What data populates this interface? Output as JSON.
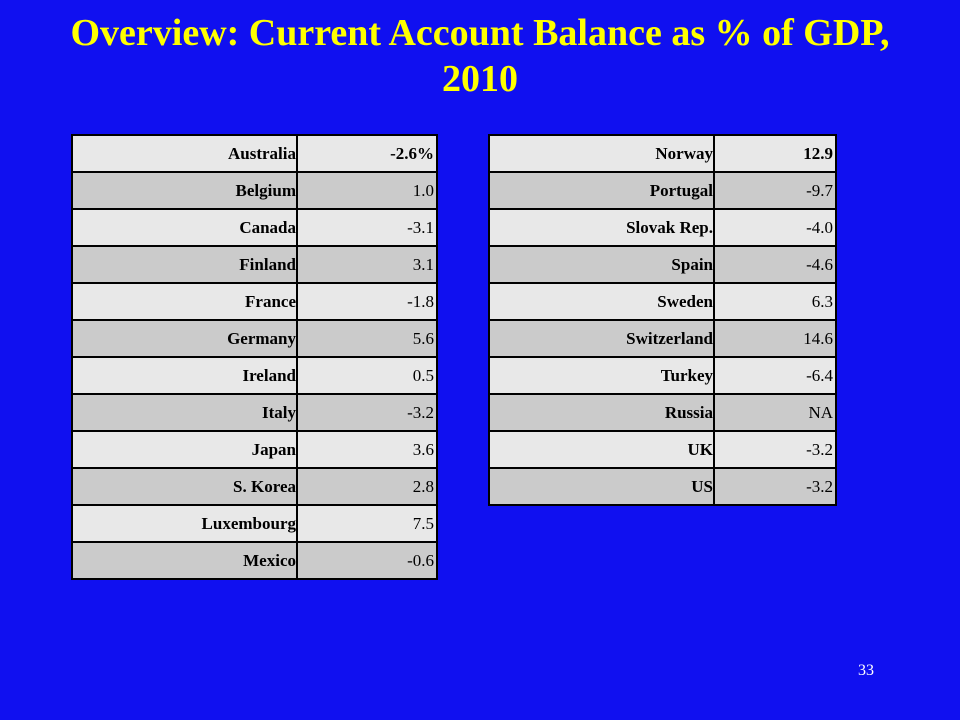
{
  "title": "Overview: Current Account Balance as % of GDP, 2010",
  "table_left": {
    "rows": [
      {
        "country": "Australia",
        "value": "-2.6%"
      },
      {
        "country": "Belgium",
        "value": "1.0"
      },
      {
        "country": "Canada",
        "value": "-3.1"
      },
      {
        "country": "Finland",
        "value": "3.1"
      },
      {
        "country": "France",
        "value": "-1.8"
      },
      {
        "country": "Germany",
        "value": "5.6"
      },
      {
        "country": "Ireland",
        "value": "0.5"
      },
      {
        "country": "Italy",
        "value": "-3.2"
      },
      {
        "country": "Japan",
        "value": "3.6"
      },
      {
        "country": "S. Korea",
        "value": "2.8"
      },
      {
        "country": "Luxembourg",
        "value": "7.5"
      },
      {
        "country": "Mexico",
        "value": "-0.6"
      }
    ]
  },
  "table_right": {
    "rows": [
      {
        "country": "Norway",
        "value": "12.9"
      },
      {
        "country": "Portugal",
        "value": "-9.7"
      },
      {
        "country": "Slovak Rep.",
        "value": "-4.0"
      },
      {
        "country": "Spain",
        "value": "-4.6"
      },
      {
        "country": "Sweden",
        "value": "6.3"
      },
      {
        "country": "Switzerland",
        "value": "14.6"
      },
      {
        "country": "Turkey",
        "value": "-6.4"
      },
      {
        "country": "Russia",
        "value": "NA"
      },
      {
        "country": "UK",
        "value": "-3.2"
      },
      {
        "country": "US",
        "value": "-3.2"
      }
    ]
  },
  "page_number": "33"
}
